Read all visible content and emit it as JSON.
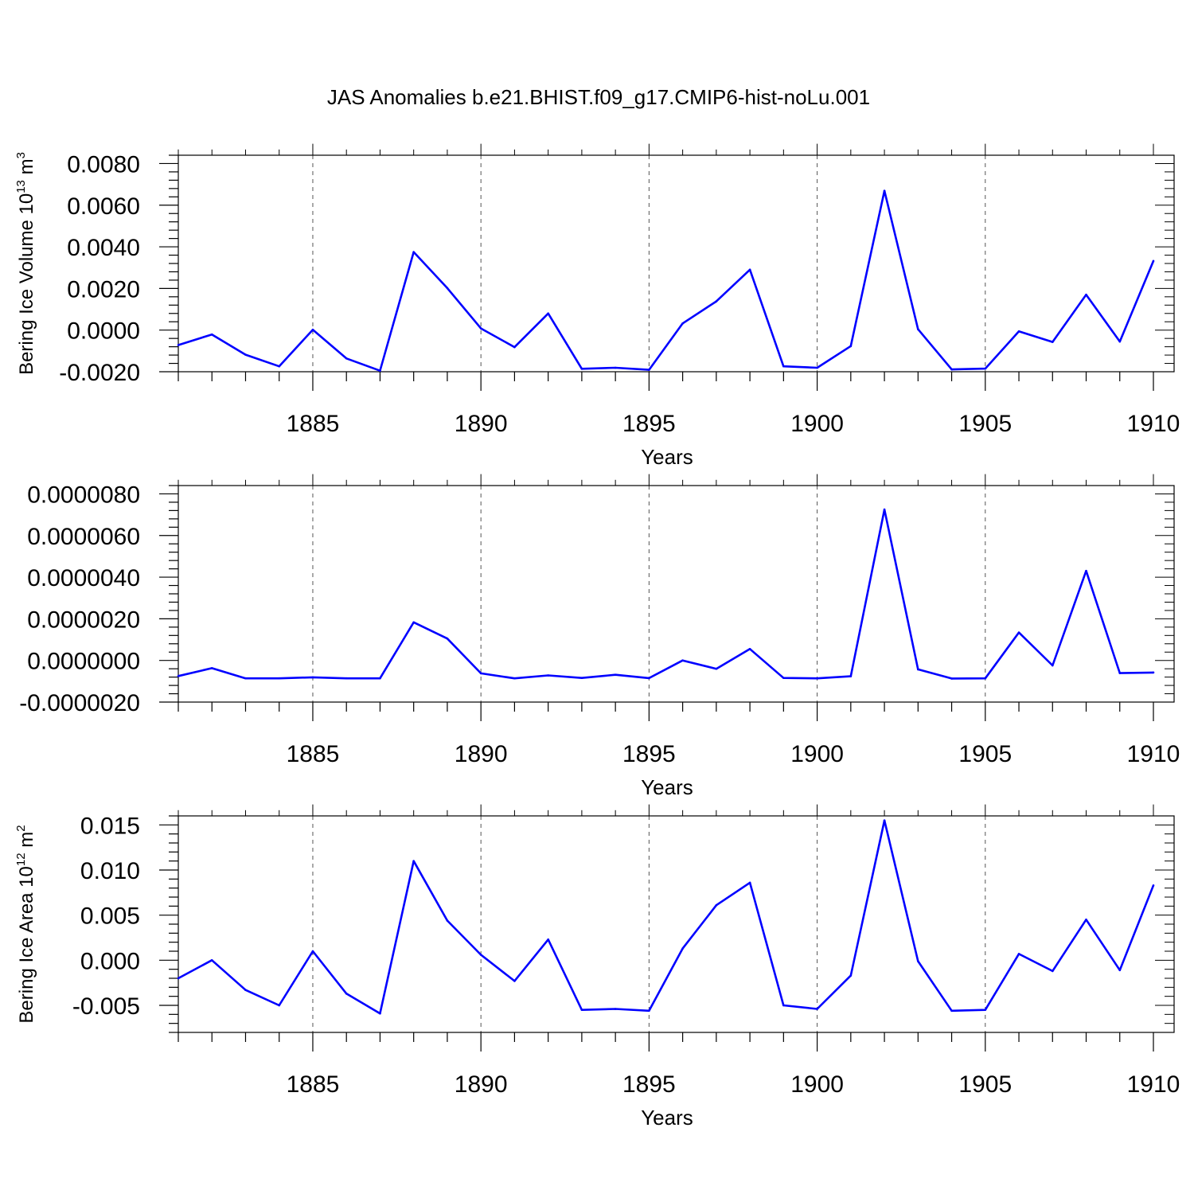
{
  "title": "JAS Anomalies b.e21.BHIST.f09_g17.CMIP6-hist-noLu.001",
  "colors": {
    "line": "#0000ff",
    "axis": "#000000",
    "grid": "#555555"
  },
  "chart_data": [
    {
      "type": "line",
      "title": "JAS Anomalies b.e21.BHIST.f09_g17.CMIP6-hist-noLu.001",
      "xlabel": "Years",
      "ylabel": {
        "main": "Bering Ice Volume 10",
        "sup1": "13",
        "mid": " m",
        "sup2": "3"
      },
      "xlim": [
        1881,
        1910
      ],
      "ylim": [
        -0.002,
        0.0084
      ],
      "xticks": [
        "1885",
        "1890",
        "1895",
        "1900",
        "1905",
        "1910"
      ],
      "xtick_values": [
        1885,
        1890,
        1895,
        1900,
        1905,
        1910
      ],
      "yticks": [
        "-0.0020",
        "0.0000",
        "0.0020",
        "0.0040",
        "0.0060",
        "0.0080"
      ],
      "ytick_values": [
        -0.002,
        0.0,
        0.002,
        0.004,
        0.006,
        0.008
      ],
      "grid": "vertical dashed",
      "x": [
        1881,
        1882,
        1883,
        1884,
        1885,
        1886,
        1887,
        1888,
        1889,
        1890,
        1891,
        1892,
        1893,
        1894,
        1895,
        1896,
        1897,
        1898,
        1899,
        1900,
        1901,
        1902,
        1903,
        1904,
        1905,
        1906,
        1907,
        1908,
        1909,
        1910
      ],
      "values": [
        -0.00072,
        -0.00021,
        -0.00118,
        -0.00174,
        2e-05,
        -0.00136,
        -0.00195,
        0.00375,
        0.00202,
        8e-05,
        -0.00082,
        0.0008,
        -0.00186,
        -0.00181,
        -0.00191,
        0.00032,
        0.00138,
        0.0029,
        -0.00174,
        -0.00181,
        -0.00077,
        0.00669,
        4e-05,
        -0.00189,
        -0.00185,
        -6e-05,
        -0.00057,
        0.0017,
        -0.00055,
        0.00332
      ]
    },
    {
      "type": "line",
      "title": "",
      "xlabel": "Years",
      "ylabel": null,
      "xlim": [
        1881,
        1910
      ],
      "ylim": [
        -2e-06,
        8.4e-06
      ],
      "xticks": [
        "1885",
        "1890",
        "1895",
        "1900",
        "1905",
        "1910"
      ],
      "xtick_values": [
        1885,
        1890,
        1895,
        1900,
        1905,
        1910
      ],
      "yticks": [
        "-0.0000020",
        "0.0000000",
        "0.0000020",
        "0.0000040",
        "0.0000060",
        "0.0000080"
      ],
      "ytick_values": [
        -2e-06,
        0.0,
        2e-06,
        4e-06,
        6e-06,
        8e-06
      ],
      "grid": "vertical dashed",
      "x": [
        1881,
        1882,
        1883,
        1884,
        1885,
        1886,
        1887,
        1888,
        1889,
        1890,
        1891,
        1892,
        1893,
        1894,
        1895,
        1896,
        1897,
        1898,
        1899,
        1900,
        1901,
        1902,
        1903,
        1904,
        1905,
        1906,
        1907,
        1908,
        1909,
        1910
      ],
      "values": [
        -7.5e-07,
        -3.7e-07,
        -8.6e-07,
        -8.6e-07,
        -8.1e-07,
        -8.6e-07,
        -8.6e-07,
        1.83e-06,
        1.05e-06,
        -6.2e-07,
        -8.6e-07,
        -7.2e-07,
        -8.4e-07,
        -6.9e-07,
        -8.5e-07,
        0.0,
        -4e-07,
        5.5e-07,
        -8.4e-07,
        -8.6e-07,
        -7.6e-07,
        7.25e-06,
        -4.3e-07,
        -8.7e-07,
        -8.6e-07,
        1.34e-06,
        -2.4e-07,
        4.3e-06,
        -6.1e-07,
        -5.8e-07
      ]
    },
    {
      "type": "line",
      "title": "",
      "xlabel": "Years",
      "ylabel": {
        "main": "Bering Ice Area 10",
        "sup1": "12",
        "mid": " m",
        "sup2": "2"
      },
      "xlim": [
        1881,
        1910
      ],
      "ylim": [
        -0.008,
        0.016
      ],
      "xticks": [
        "1885",
        "1890",
        "1895",
        "1900",
        "1905",
        "1910"
      ],
      "xtick_values": [
        1885,
        1890,
        1895,
        1900,
        1905,
        1910
      ],
      "yticks": [
        "-0.005",
        "0.000",
        "0.005",
        "0.010",
        "0.015"
      ],
      "ytick_values": [
        -0.005,
        0.0,
        0.005,
        0.01,
        0.015
      ],
      "grid": "vertical dashed",
      "x": [
        1881,
        1882,
        1883,
        1884,
        1885,
        1886,
        1887,
        1888,
        1889,
        1890,
        1891,
        1892,
        1893,
        1894,
        1895,
        1896,
        1897,
        1898,
        1899,
        1900,
        1901,
        1902,
        1903,
        1904,
        1905,
        1906,
        1907,
        1908,
        1909,
        1910
      ],
      "values": [
        -0.002,
        0.0,
        -0.0033,
        -0.005,
        0.001,
        -0.0037,
        -0.0059,
        0.011,
        0.0044,
        0.0006,
        -0.0023,
        0.0023,
        -0.0055,
        -0.0054,
        -0.0056,
        0.0013,
        0.0061,
        0.0086,
        -0.005,
        -0.0054,
        -0.0017,
        0.0155,
        -0.0001,
        -0.0056,
        -0.0055,
        0.0007,
        -0.0012,
        0.0045,
        -0.0011,
        0.0083
      ]
    }
  ]
}
